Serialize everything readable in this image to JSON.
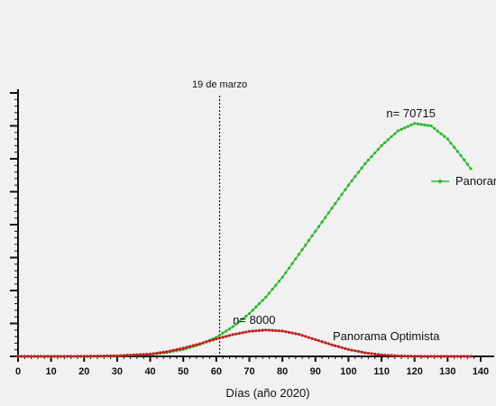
{
  "chart_data": {
    "type": "line",
    "xlabel": "Días (año 2020)",
    "ylabel": "",
    "xlim": [
      0,
      140
    ],
    "ylim": [
      0,
      80000
    ],
    "x_ticks": [
      0,
      10,
      20,
      30,
      40,
      50,
      60,
      70,
      80,
      90,
      100,
      110,
      120,
      130,
      140
    ],
    "y_tick_count": 9,
    "grid": false,
    "vline": {
      "x": 61,
      "label": "19 de marzo"
    },
    "series": [
      {
        "name": "Panorama",
        "color": "#2db82d",
        "points": [
          [
            0,
            0
          ],
          [
            10,
            2
          ],
          [
            20,
            20
          ],
          [
            30,
            150
          ],
          [
            40,
            600
          ],
          [
            45,
            1200
          ],
          [
            50,
            2100
          ],
          [
            55,
            3600
          ],
          [
            60,
            5800
          ],
          [
            65,
            9000
          ],
          [
            70,
            13000
          ],
          [
            75,
            18000
          ],
          [
            80,
            24000
          ],
          [
            85,
            31000
          ],
          [
            90,
            38000
          ],
          [
            95,
            45000
          ],
          [
            100,
            52000
          ],
          [
            105,
            58500
          ],
          [
            110,
            64000
          ],
          [
            115,
            68500
          ],
          [
            120,
            70715
          ],
          [
            125,
            70000
          ],
          [
            130,
            66000
          ],
          [
            134,
            61000
          ],
          [
            137,
            57000
          ]
        ],
        "peak_label": "n= 70715",
        "peak_x": 120
      },
      {
        "name": "Panorama Optimista",
        "color": "#c0201e",
        "points": [
          [
            0,
            0
          ],
          [
            10,
            3
          ],
          [
            20,
            30
          ],
          [
            30,
            180
          ],
          [
            40,
            700
          ],
          [
            45,
            1400
          ],
          [
            50,
            2500
          ],
          [
            55,
            3800
          ],
          [
            60,
            5300
          ],
          [
            65,
            6600
          ],
          [
            70,
            7600
          ],
          [
            75,
            8000
          ],
          [
            80,
            7700
          ],
          [
            85,
            6700
          ],
          [
            90,
            5100
          ],
          [
            95,
            3500
          ],
          [
            100,
            2100
          ],
          [
            105,
            1100
          ],
          [
            110,
            450
          ],
          [
            115,
            150
          ],
          [
            120,
            40
          ],
          [
            125,
            10
          ],
          [
            130,
            3
          ],
          [
            137,
            0
          ]
        ],
        "peak_label": "n= 8000",
        "peak_x": 75
      }
    ]
  }
}
